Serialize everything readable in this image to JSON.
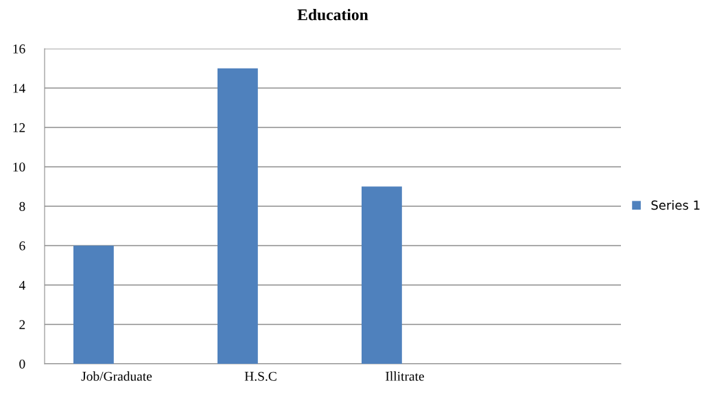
{
  "chart_data": {
    "type": "bar",
    "title": "Education",
    "categories": [
      "Job/Graduate",
      "H.S.C",
      "Illitrate",
      null
    ],
    "series": [
      {
        "name": "Series 1",
        "color": "#4f81bd",
        "values": [
          6,
          15,
          9,
          null
        ]
      }
    ],
    "ylim": [
      0,
      16
    ],
    "yticks": [
      0,
      2,
      4,
      6,
      8,
      10,
      12,
      14,
      16
    ],
    "grid": "y",
    "legend": "right"
  }
}
